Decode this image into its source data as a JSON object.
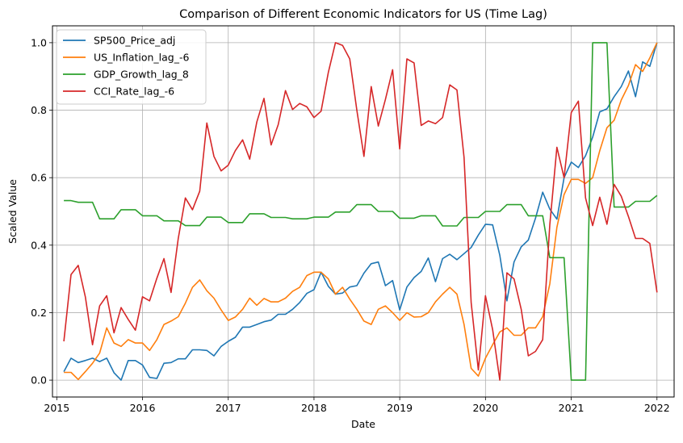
{
  "chart_data": {
    "type": "line",
    "title": "Comparison of Different Economic Indicators for US (Time Lag)",
    "xlabel": "Date",
    "ylabel": "Scaled Value",
    "xlim": [
      2014.95,
      2022.2
    ],
    "ylim": [
      -0.05,
      1.05
    ],
    "xticks": [
      2015,
      2016,
      2017,
      2018,
      2019,
      2020,
      2021,
      2022
    ],
    "yticks": [
      0.0,
      0.2,
      0.4,
      0.6,
      0.8,
      1.0
    ],
    "ytick_labels": [
      "0.0",
      "0.2",
      "0.4",
      "0.6",
      "0.8",
      "1.0"
    ],
    "grid": true,
    "legend_position": "top-left",
    "series": [
      {
        "name": "SP500_Price_adj",
        "color": "#1f77b4",
        "x": [
          2015.083,
          2015.167,
          2015.25,
          2015.333,
          2015.417,
          2015.5,
          2015.583,
          2015.667,
          2015.75,
          2015.833,
          2015.917,
          2016.0,
          2016.083,
          2016.167,
          2016.25,
          2016.333,
          2016.417,
          2016.5,
          2016.583,
          2016.667,
          2016.75,
          2016.833,
          2016.917,
          2017.0,
          2017.083,
          2017.167,
          2017.25,
          2017.333,
          2017.417,
          2017.5,
          2017.583,
          2017.667,
          2017.75,
          2017.833,
          2017.917,
          2018.0,
          2018.083,
          2018.167,
          2018.25,
          2018.333,
          2018.417,
          2018.5,
          2018.583,
          2018.667,
          2018.75,
          2018.833,
          2018.917,
          2019.0,
          2019.083,
          2019.167,
          2019.25,
          2019.333,
          2019.417,
          2019.5,
          2019.583,
          2019.667,
          2019.75,
          2019.833,
          2019.917,
          2020.0,
          2020.083,
          2020.167,
          2020.25,
          2020.333,
          2020.417,
          2020.5,
          2020.583,
          2020.667,
          2020.75,
          2020.833,
          2020.917,
          2021.0,
          2021.083,
          2021.167,
          2021.25,
          2021.333,
          2021.417,
          2021.5,
          2021.583,
          2021.667,
          2021.75,
          2021.833,
          2021.917,
          2022.0
        ],
        "y": [
          0.025,
          0.065,
          0.052,
          0.058,
          0.065,
          0.055,
          0.065,
          0.022,
          0.0,
          0.058,
          0.058,
          0.045,
          0.008,
          0.005,
          0.05,
          0.052,
          0.063,
          0.063,
          0.09,
          0.09,
          0.088,
          0.072,
          0.1,
          0.115,
          0.127,
          0.157,
          0.157,
          0.165,
          0.173,
          0.178,
          0.195,
          0.195,
          0.21,
          0.23,
          0.257,
          0.268,
          0.32,
          0.278,
          0.255,
          0.258,
          0.276,
          0.28,
          0.317,
          0.345,
          0.35,
          0.28,
          0.295,
          0.208,
          0.276,
          0.304,
          0.322,
          0.362,
          0.292,
          0.36,
          0.373,
          0.357,
          0.375,
          0.393,
          0.43,
          0.462,
          0.46,
          0.37,
          0.235,
          0.35,
          0.395,
          0.415,
          0.48,
          0.557,
          0.507,
          0.477,
          0.6,
          0.646,
          0.63,
          0.665,
          0.72,
          0.795,
          0.804,
          0.84,
          0.87,
          0.916,
          0.84,
          0.943,
          0.93,
          1.0
        ]
      },
      {
        "name": "US_Inflation_lag_-6",
        "color": "#ff7f0e",
        "x": [
          2015.083,
          2015.167,
          2015.25,
          2015.333,
          2015.417,
          2015.5,
          2015.583,
          2015.667,
          2015.75,
          2015.833,
          2015.917,
          2016.0,
          2016.083,
          2016.167,
          2016.25,
          2016.333,
          2016.417,
          2016.5,
          2016.583,
          2016.667,
          2016.75,
          2016.833,
          2016.917,
          2017.0,
          2017.083,
          2017.167,
          2017.25,
          2017.333,
          2017.417,
          2017.5,
          2017.583,
          2017.667,
          2017.75,
          2017.833,
          2017.917,
          2018.0,
          2018.083,
          2018.167,
          2018.25,
          2018.333,
          2018.417,
          2018.5,
          2018.583,
          2018.667,
          2018.75,
          2018.833,
          2018.917,
          2019.0,
          2019.083,
          2019.167,
          2019.25,
          2019.333,
          2019.417,
          2019.5,
          2019.583,
          2019.667,
          2019.75,
          2019.833,
          2019.917,
          2020.0,
          2020.083,
          2020.167,
          2020.25,
          2020.333,
          2020.417,
          2020.5,
          2020.583,
          2020.667,
          2020.75,
          2020.833,
          2020.917,
          2021.0,
          2021.083,
          2021.167,
          2021.25,
          2021.333,
          2021.417,
          2021.5,
          2021.583,
          2021.667,
          2021.75,
          2021.833,
          2021.917,
          2022.0
        ],
        "y": [
          0.023,
          0.023,
          0.002,
          0.025,
          0.05,
          0.08,
          0.155,
          0.11,
          0.1,
          0.12,
          0.11,
          0.11,
          0.088,
          0.12,
          0.165,
          0.175,
          0.188,
          0.228,
          0.275,
          0.297,
          0.265,
          0.243,
          0.208,
          0.177,
          0.187,
          0.21,
          0.243,
          0.222,
          0.242,
          0.232,
          0.232,
          0.243,
          0.263,
          0.275,
          0.31,
          0.32,
          0.32,
          0.3,
          0.255,
          0.275,
          0.24,
          0.21,
          0.175,
          0.165,
          0.21,
          0.22,
          0.2,
          0.177,
          0.2,
          0.187,
          0.188,
          0.2,
          0.232,
          0.255,
          0.275,
          0.255,
          0.165,
          0.035,
          0.012,
          0.065,
          0.105,
          0.143,
          0.155,
          0.133,
          0.133,
          0.155,
          0.155,
          0.188,
          0.285,
          0.453,
          0.55,
          0.595,
          0.595,
          0.583,
          0.6,
          0.68,
          0.748,
          0.77,
          0.83,
          0.873,
          0.935,
          0.915,
          0.955,
          1.0
        ]
      },
      {
        "name": "GDP_Growth_lag_8",
        "color": "#2ca02c",
        "x": [
          2015.083,
          2015.167,
          2015.25,
          2015.333,
          2015.417,
          2015.5,
          2015.583,
          2015.667,
          2015.75,
          2015.833,
          2015.917,
          2016.0,
          2016.083,
          2016.167,
          2016.25,
          2016.333,
          2016.417,
          2016.5,
          2016.583,
          2016.667,
          2016.75,
          2016.833,
          2016.917,
          2017.0,
          2017.083,
          2017.167,
          2017.25,
          2017.333,
          2017.417,
          2017.5,
          2017.583,
          2017.667,
          2017.75,
          2017.833,
          2017.917,
          2018.0,
          2018.083,
          2018.167,
          2018.25,
          2018.333,
          2018.417,
          2018.5,
          2018.583,
          2018.667,
          2018.75,
          2018.833,
          2018.917,
          2019.0,
          2019.083,
          2019.167,
          2019.25,
          2019.333,
          2019.417,
          2019.5,
          2019.583,
          2019.667,
          2019.75,
          2019.833,
          2019.917,
          2020.0,
          2020.083,
          2020.167,
          2020.25,
          2020.333,
          2020.417,
          2020.5,
          2020.583,
          2020.667,
          2020.75,
          2020.833,
          2020.917,
          2021.0,
          2021.083,
          2021.167,
          2021.25,
          2021.333,
          2021.417,
          2021.5,
          2021.583,
          2021.667,
          2021.75,
          2021.833,
          2021.917,
          2022.0
        ],
        "y": [
          0.532,
          0.532,
          0.527,
          0.527,
          0.527,
          0.478,
          0.478,
          0.478,
          0.505,
          0.505,
          0.505,
          0.487,
          0.487,
          0.487,
          0.472,
          0.472,
          0.472,
          0.458,
          0.458,
          0.458,
          0.483,
          0.483,
          0.483,
          0.467,
          0.467,
          0.467,
          0.493,
          0.493,
          0.493,
          0.482,
          0.482,
          0.482,
          0.478,
          0.478,
          0.478,
          0.483,
          0.483,
          0.483,
          0.498,
          0.498,
          0.498,
          0.52,
          0.52,
          0.52,
          0.5,
          0.5,
          0.5,
          0.48,
          0.48,
          0.48,
          0.487,
          0.487,
          0.487,
          0.457,
          0.457,
          0.457,
          0.482,
          0.482,
          0.482,
          0.5,
          0.5,
          0.5,
          0.52,
          0.52,
          0.52,
          0.487,
          0.487,
          0.487,
          0.363,
          0.363,
          0.363,
          0.0,
          0.0,
          0.0,
          1.0,
          1.0,
          1.0,
          0.513,
          0.513,
          0.513,
          0.53,
          0.53,
          0.53,
          0.547
        ]
      },
      {
        "name": "CCI_Rate_lag_-6",
        "color": "#d62728",
        "x": [
          2015.083,
          2015.167,
          2015.25,
          2015.333,
          2015.417,
          2015.5,
          2015.583,
          2015.667,
          2015.75,
          2015.833,
          2015.917,
          2016.0,
          2016.083,
          2016.167,
          2016.25,
          2016.333,
          2016.417,
          2016.5,
          2016.583,
          2016.667,
          2016.75,
          2016.833,
          2016.917,
          2017.0,
          2017.083,
          2017.167,
          2017.25,
          2017.333,
          2017.417,
          2017.5,
          2017.583,
          2017.667,
          2017.75,
          2017.833,
          2017.917,
          2018.0,
          2018.083,
          2018.167,
          2018.25,
          2018.333,
          2018.417,
          2018.5,
          2018.583,
          2018.667,
          2018.75,
          2018.833,
          2018.917,
          2019.0,
          2019.083,
          2019.167,
          2019.25,
          2019.333,
          2019.417,
          2019.5,
          2019.583,
          2019.667,
          2019.75,
          2019.833,
          2019.917,
          2020.0,
          2020.083,
          2020.167,
          2020.25,
          2020.333,
          2020.417,
          2020.5,
          2020.583,
          2020.667,
          2020.75,
          2020.833,
          2020.917,
          2021.0,
          2021.083,
          2021.167,
          2021.25,
          2021.333,
          2021.417,
          2021.5,
          2021.583,
          2021.667,
          2021.75,
          2021.833,
          2021.917,
          2022.0
        ],
        "y": [
          0.115,
          0.313,
          0.34,
          0.247,
          0.105,
          0.22,
          0.25,
          0.14,
          0.215,
          0.18,
          0.148,
          0.247,
          0.235,
          0.302,
          0.36,
          0.26,
          0.42,
          0.54,
          0.505,
          0.56,
          0.762,
          0.663,
          0.62,
          0.637,
          0.68,
          0.712,
          0.655,
          0.765,
          0.835,
          0.697,
          0.757,
          0.858,
          0.802,
          0.82,
          0.81,
          0.778,
          0.797,
          0.912,
          1.0,
          0.992,
          0.952,
          0.8,
          0.663,
          0.87,
          0.753,
          0.832,
          0.92,
          0.685,
          0.952,
          0.94,
          0.755,
          0.768,
          0.76,
          0.778,
          0.875,
          0.86,
          0.66,
          0.23,
          0.03,
          0.25,
          0.15,
          0.0,
          0.318,
          0.3,
          0.21,
          0.072,
          0.085,
          0.12,
          0.46,
          0.69,
          0.6,
          0.793,
          0.827,
          0.54,
          0.458,
          0.542,
          0.462,
          0.58,
          0.545,
          0.485,
          0.42,
          0.42,
          0.405,
          0.26
        ]
      }
    ]
  }
}
